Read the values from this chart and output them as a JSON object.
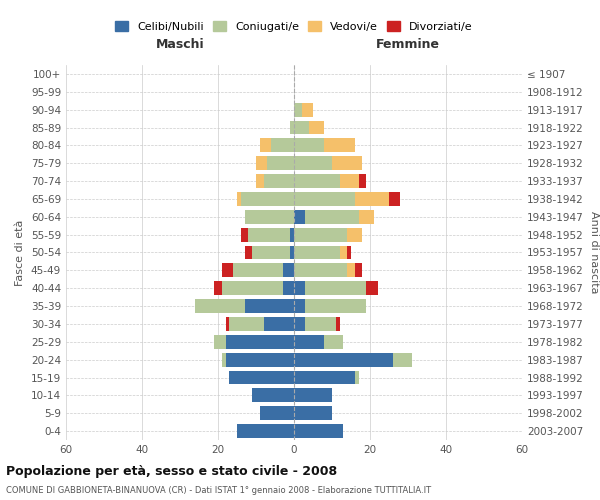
{
  "age_groups": [
    "0-4",
    "5-9",
    "10-14",
    "15-19",
    "20-24",
    "25-29",
    "30-34",
    "35-39",
    "40-44",
    "45-49",
    "50-54",
    "55-59",
    "60-64",
    "65-69",
    "70-74",
    "75-79",
    "80-84",
    "85-89",
    "90-94",
    "95-99",
    "100+"
  ],
  "birth_years": [
    "2003-2007",
    "1998-2002",
    "1993-1997",
    "1988-1992",
    "1983-1987",
    "1978-1982",
    "1973-1977",
    "1968-1972",
    "1963-1967",
    "1958-1962",
    "1953-1957",
    "1948-1952",
    "1943-1947",
    "1938-1942",
    "1933-1937",
    "1928-1932",
    "1923-1927",
    "1918-1922",
    "1913-1917",
    "1908-1912",
    "≤ 1907"
  ],
  "males": {
    "celibi": [
      15,
      9,
      11,
      17,
      18,
      18,
      8,
      13,
      3,
      3,
      1,
      1,
      0,
      0,
      0,
      0,
      0,
      0,
      0,
      0,
      0
    ],
    "coniugati": [
      0,
      0,
      0,
      0,
      1,
      3,
      9,
      13,
      16,
      13,
      10,
      11,
      13,
      14,
      8,
      7,
      6,
      1,
      0,
      0,
      0
    ],
    "vedovi": [
      0,
      0,
      0,
      0,
      0,
      0,
      0,
      0,
      0,
      0,
      0,
      0,
      0,
      1,
      2,
      3,
      3,
      0,
      0,
      0,
      0
    ],
    "divorziati": [
      0,
      0,
      0,
      0,
      0,
      0,
      1,
      0,
      2,
      3,
      2,
      2,
      0,
      0,
      0,
      0,
      0,
      0,
      0,
      0,
      0
    ]
  },
  "females": {
    "nubili": [
      13,
      10,
      10,
      16,
      26,
      8,
      3,
      3,
      3,
      0,
      0,
      0,
      3,
      0,
      0,
      0,
      0,
      0,
      0,
      0,
      0
    ],
    "coniugate": [
      0,
      0,
      0,
      1,
      5,
      5,
      8,
      16,
      16,
      14,
      12,
      14,
      14,
      16,
      12,
      10,
      8,
      4,
      2,
      0,
      0
    ],
    "vedove": [
      0,
      0,
      0,
      0,
      0,
      0,
      0,
      0,
      0,
      2,
      2,
      4,
      4,
      9,
      5,
      8,
      8,
      4,
      3,
      0,
      0
    ],
    "divorziate": [
      0,
      0,
      0,
      0,
      0,
      0,
      1,
      0,
      3,
      2,
      1,
      0,
      0,
      3,
      2,
      0,
      0,
      0,
      0,
      0,
      0
    ]
  },
  "colors": {
    "celibi": "#3a6ea5",
    "coniugati": "#b5c99a",
    "vedovi": "#f5c06a",
    "divorziati": "#cc2222"
  },
  "title": "Popolazione per età, sesso e stato civile - 2008",
  "subtitle": "COMUNE DI GABBIONETA-BINANUOVA (CR) - Dati ISTAT 1° gennaio 2008 - Elaborazione TUTTITALIA.IT",
  "xlabel_left": "Maschi",
  "xlabel_right": "Femmine",
  "ylabel_left": "Fasce di età",
  "ylabel_right": "Anni di nascita",
  "xlim": 60,
  "legend_labels": [
    "Celibi/Nubili",
    "Coniugati/e",
    "Vedovi/e",
    "Divorziati/e"
  ],
  "background_color": "#ffffff",
  "grid_color": "#cccccc"
}
